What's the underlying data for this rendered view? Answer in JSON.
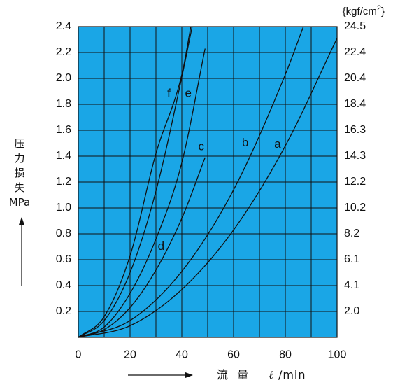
{
  "chart_data": {
    "type": "line",
    "xlabel": "流 量 ℓ/min",
    "xlabel_parts": {
      "main": "流  量",
      "unit_symbol": "ℓ",
      "unit_rest": " /min"
    },
    "ylabel_chars": [
      "压",
      "力",
      "损",
      "失",
      "MPa"
    ],
    "y2label": {
      "prefix": "{kgf/cm",
      "sup": "2",
      "suffix": "}"
    },
    "xlim": [
      0,
      100
    ],
    "ylim": [
      0,
      2.4
    ],
    "x_ticks": [
      0,
      20,
      40,
      60,
      80,
      100
    ],
    "x_tick_labels": [
      "0",
      "20",
      "40",
      "60",
      "80",
      "100"
    ],
    "y_ticks": [
      0.2,
      0.4,
      0.6,
      0.8,
      1.0,
      1.2,
      1.4,
      1.6,
      1.8,
      2.0,
      2.2,
      2.4
    ],
    "y_tick_labels": [
      "0.2",
      "0.4",
      "0.6",
      "0.8",
      "1.0",
      "1.2",
      "1.4",
      "1.6",
      "1.8",
      "2.0",
      "2.2",
      "2.4"
    ],
    "y2_tick_labels": [
      "2.0",
      "4.1",
      "6.1",
      "8.2",
      "10.2",
      "12.2",
      "14.3",
      "16.3",
      "18.4",
      "20.4",
      "22.4",
      "24.5"
    ],
    "grid": true,
    "grid_step_x": 10,
    "series": [
      {
        "name": "a",
        "x": [
          0,
          20,
          40,
          60,
          80,
          100
        ],
        "y": [
          0,
          0.09,
          0.37,
          0.83,
          1.48,
          2.31
        ]
      },
      {
        "name": "b",
        "x": [
          0,
          20,
          40,
          60,
          80,
          87
        ],
        "y": [
          0,
          0.13,
          0.51,
          1.14,
          2.03,
          2.4
        ]
      },
      {
        "name": "c",
        "x": [
          0,
          10,
          20,
          30,
          40,
          49
        ],
        "y": [
          0,
          0.06,
          0.23,
          0.52,
          0.92,
          1.39
        ]
      },
      {
        "name": "d",
        "x": [
          0,
          10,
          20,
          30,
          40,
          49
        ],
        "y": [
          0,
          0.08,
          0.34,
          0.76,
          1.35,
          2.23
        ]
      },
      {
        "name": "e",
        "x": [
          0,
          10,
          20,
          30,
          40,
          44
        ],
        "y": [
          0,
          0.13,
          0.5,
          1.13,
          2.01,
          2.4
        ]
      },
      {
        "name": "f",
        "x": [
          0,
          10,
          20,
          30,
          40,
          43.5
        ],
        "y": [
          0,
          0.16,
          0.63,
          1.42,
          2.03,
          2.4
        ]
      }
    ],
    "curve_labels": [
      {
        "text": "a",
        "x": 77,
        "y": 1.49
      },
      {
        "text": "b",
        "x": 64.5,
        "y": 1.5
      },
      {
        "text": "c",
        "x": 47.5,
        "y": 1.47
      },
      {
        "text": "d",
        "x": 32,
        "y": 0.7
      },
      {
        "text": "e",
        "x": 42.5,
        "y": 1.88
      },
      {
        "text": "f",
        "x": 35,
        "y": 1.88
      }
    ]
  },
  "colors": {
    "plot_background": "#1aa6e6",
    "grid": "#111111",
    "curves": "#111111",
    "text": "#111111"
  }
}
